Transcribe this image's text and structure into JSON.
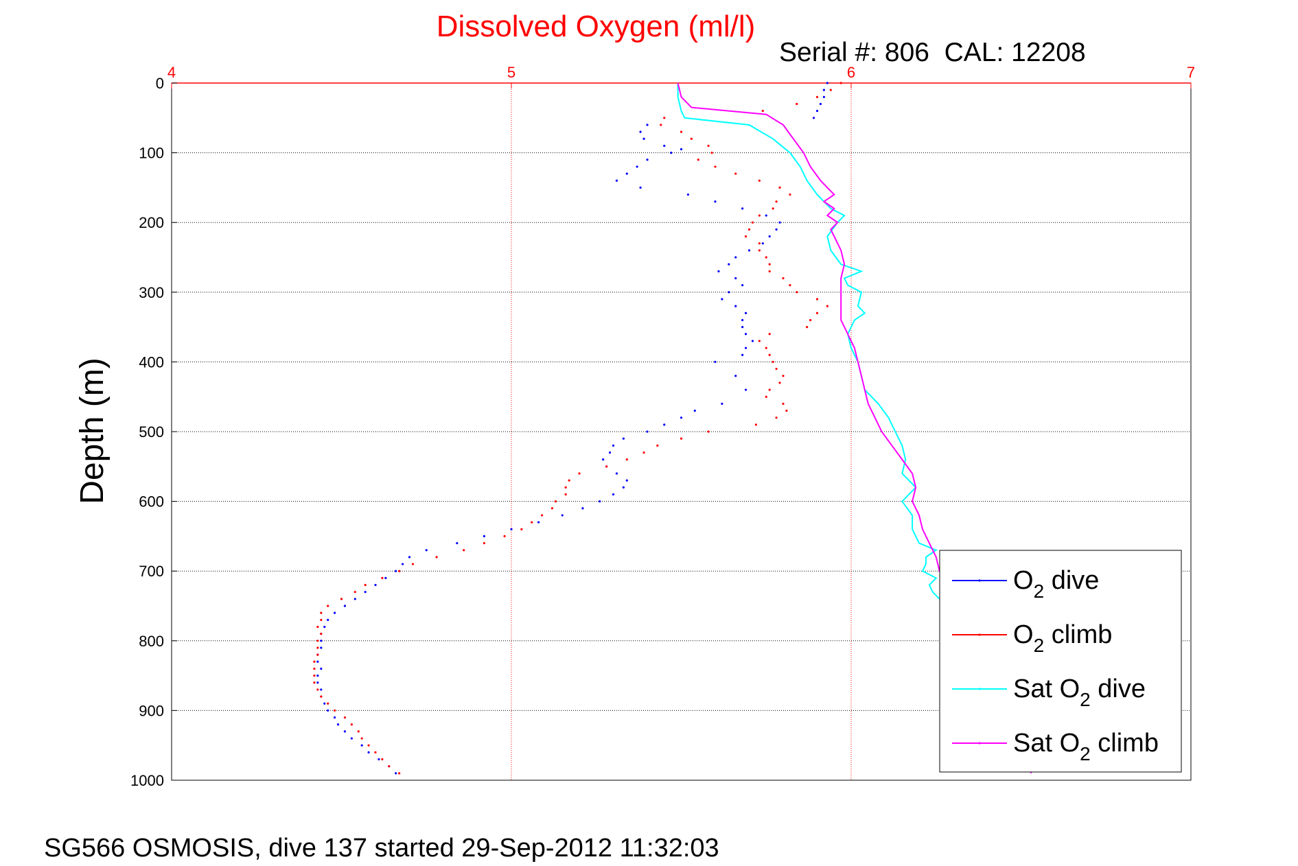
{
  "chart_data": {
    "type": "scatter",
    "title": "Dissolved Oxygen (ml/l)",
    "subtitle": "Serial #: 806  CAL: 12208",
    "ylabel": "Depth (m)",
    "footer": "SG566 OSMOSIS, dive 137 started 29-Sep-2012 11:32:03",
    "xlim": [
      4,
      7
    ],
    "ylim": [
      0,
      1000
    ],
    "y_reversed": true,
    "x_axis_position": "top",
    "x_ticks": [
      "4",
      "5",
      "6",
      "7"
    ],
    "y_ticks": [
      "0",
      "100",
      "200",
      "300",
      "400",
      "500",
      "600",
      "700",
      "800",
      "900",
      "1000"
    ],
    "grid": true,
    "legend_position": "bottom-right",
    "colors": {
      "title": "#ff0000",
      "x_axis": "#ff0000",
      "y_axis": "#000000",
      "grid_x": "#ff0000",
      "grid_y": "#000000"
    },
    "series": [
      {
        "name": "O2 dive",
        "legend_label": "O",
        "legend_sub": "2",
        "legend_rest": " dive",
        "style": "dots",
        "color": "#0000ff",
        "points": [
          [
            5.93,
            0
          ],
          [
            5.92,
            10
          ],
          [
            5.92,
            20
          ],
          [
            5.91,
            30
          ],
          [
            5.9,
            40
          ],
          [
            5.89,
            50
          ],
          [
            5.4,
            60
          ],
          [
            5.38,
            70
          ],
          [
            5.39,
            80
          ],
          [
            5.45,
            90
          ],
          [
            5.5,
            95
          ],
          [
            5.47,
            100
          ],
          [
            5.4,
            110
          ],
          [
            5.37,
            120
          ],
          [
            5.34,
            130
          ],
          [
            5.31,
            140
          ],
          [
            5.38,
            150
          ],
          [
            5.52,
            160
          ],
          [
            5.6,
            170
          ],
          [
            5.68,
            180
          ],
          [
            5.75,
            190
          ],
          [
            5.79,
            200
          ],
          [
            5.78,
            210
          ],
          [
            5.76,
            220
          ],
          [
            5.74,
            230
          ],
          [
            5.7,
            240
          ],
          [
            5.66,
            250
          ],
          [
            5.64,
            260
          ],
          [
            5.61,
            270
          ],
          [
            5.66,
            280
          ],
          [
            5.68,
            290
          ],
          [
            5.64,
            300
          ],
          [
            5.62,
            310
          ],
          [
            5.66,
            320
          ],
          [
            5.69,
            330
          ],
          [
            5.68,
            340
          ],
          [
            5.68,
            350
          ],
          [
            5.69,
            360
          ],
          [
            5.71,
            370
          ],
          [
            5.69,
            380
          ],
          [
            5.68,
            390
          ],
          [
            5.6,
            400
          ],
          [
            5.66,
            420
          ],
          [
            5.69,
            440
          ],
          [
            5.62,
            460
          ],
          [
            5.54,
            470
          ],
          [
            5.5,
            480
          ],
          [
            5.45,
            490
          ],
          [
            5.4,
            500
          ],
          [
            5.33,
            510
          ],
          [
            5.3,
            520
          ],
          [
            5.29,
            530
          ],
          [
            5.27,
            540
          ],
          [
            5.28,
            550
          ],
          [
            5.31,
            560
          ],
          [
            5.34,
            570
          ],
          [
            5.33,
            580
          ],
          [
            5.3,
            590
          ],
          [
            5.26,
            600
          ],
          [
            5.21,
            610
          ],
          [
            5.15,
            620
          ],
          [
            5.08,
            630
          ],
          [
            5.0,
            640
          ],
          [
            4.92,
            650
          ],
          [
            4.84,
            660
          ],
          [
            4.75,
            670
          ],
          [
            4.7,
            680
          ],
          [
            4.68,
            690
          ],
          [
            4.66,
            700
          ],
          [
            4.63,
            710
          ],
          [
            4.6,
            720
          ],
          [
            4.57,
            730
          ],
          [
            4.54,
            740
          ],
          [
            4.51,
            750
          ],
          [
            4.48,
            760
          ],
          [
            4.46,
            770
          ],
          [
            4.45,
            780
          ],
          [
            4.44,
            790
          ],
          [
            4.44,
            800
          ],
          [
            4.44,
            810
          ],
          [
            4.43,
            820
          ],
          [
            4.43,
            830
          ],
          [
            4.44,
            840
          ],
          [
            4.43,
            850
          ],
          [
            4.43,
            860
          ],
          [
            4.44,
            870
          ],
          [
            4.44,
            880
          ],
          [
            4.45,
            890
          ],
          [
            4.46,
            900
          ],
          [
            4.48,
            910
          ],
          [
            4.49,
            920
          ],
          [
            4.51,
            930
          ],
          [
            4.53,
            940
          ],
          [
            4.56,
            950
          ],
          [
            4.58,
            960
          ],
          [
            4.61,
            970
          ],
          [
            4.64,
            980
          ],
          [
            4.66,
            990
          ]
        ]
      },
      {
        "name": "O2 climb",
        "legend_label": "O",
        "legend_sub": "2",
        "legend_rest": " climb",
        "style": "dots",
        "color": "#ff0000",
        "points": [
          [
            5.97,
            0
          ],
          [
            5.94,
            10
          ],
          [
            5.9,
            20
          ],
          [
            5.84,
            30
          ],
          [
            5.74,
            40
          ],
          [
            5.45,
            50
          ],
          [
            5.44,
            60
          ],
          [
            5.5,
            70
          ],
          [
            5.53,
            80
          ],
          [
            5.58,
            90
          ],
          [
            5.59,
            100
          ],
          [
            5.55,
            110
          ],
          [
            5.6,
            120
          ],
          [
            5.66,
            130
          ],
          [
            5.73,
            140
          ],
          [
            5.79,
            150
          ],
          [
            5.82,
            160
          ],
          [
            5.78,
            170
          ],
          [
            5.77,
            180
          ],
          [
            5.73,
            190
          ],
          [
            5.71,
            200
          ],
          [
            5.7,
            210
          ],
          [
            5.69,
            220
          ],
          [
            5.73,
            230
          ],
          [
            5.73,
            240
          ],
          [
            5.75,
            250
          ],
          [
            5.76,
            260
          ],
          [
            5.76,
            270
          ],
          [
            5.8,
            280
          ],
          [
            5.82,
            290
          ],
          [
            5.84,
            300
          ],
          [
            5.9,
            310
          ],
          [
            5.93,
            320
          ],
          [
            5.9,
            330
          ],
          [
            5.88,
            340
          ],
          [
            5.87,
            350
          ],
          [
            5.76,
            360
          ],
          [
            5.73,
            370
          ],
          [
            5.75,
            380
          ],
          [
            5.76,
            390
          ],
          [
            5.77,
            400
          ],
          [
            5.78,
            410
          ],
          [
            5.8,
            420
          ],
          [
            5.79,
            430
          ],
          [
            5.76,
            440
          ],
          [
            5.75,
            450
          ],
          [
            5.8,
            460
          ],
          [
            5.81,
            470
          ],
          [
            5.78,
            480
          ],
          [
            5.72,
            490
          ],
          [
            5.58,
            500
          ],
          [
            5.5,
            510
          ],
          [
            5.43,
            520
          ],
          [
            5.39,
            530
          ],
          [
            5.34,
            540
          ],
          [
            5.28,
            550
          ],
          [
            5.2,
            560
          ],
          [
            5.17,
            570
          ],
          [
            5.16,
            580
          ],
          [
            5.16,
            590
          ],
          [
            5.13,
            600
          ],
          [
            5.12,
            610
          ],
          [
            5.09,
            620
          ],
          [
            5.06,
            630
          ],
          [
            5.03,
            640
          ],
          [
            4.98,
            650
          ],
          [
            4.92,
            660
          ],
          [
            4.86,
            670
          ],
          [
            4.78,
            680
          ],
          [
            4.71,
            690
          ],
          [
            4.67,
            700
          ],
          [
            4.62,
            710
          ],
          [
            4.57,
            720
          ],
          [
            4.54,
            730
          ],
          [
            4.5,
            740
          ],
          [
            4.46,
            750
          ],
          [
            4.44,
            760
          ],
          [
            4.44,
            770
          ],
          [
            4.43,
            780
          ],
          [
            4.44,
            790
          ],
          [
            4.43,
            800
          ],
          [
            4.43,
            810
          ],
          [
            4.43,
            820
          ],
          [
            4.42,
            830
          ],
          [
            4.42,
            840
          ],
          [
            4.42,
            850
          ],
          [
            4.42,
            860
          ],
          [
            4.43,
            870
          ],
          [
            4.44,
            880
          ],
          [
            4.46,
            890
          ],
          [
            4.48,
            900
          ],
          [
            4.51,
            910
          ],
          [
            4.53,
            920
          ],
          [
            4.55,
            930
          ],
          [
            4.56,
            940
          ],
          [
            4.58,
            950
          ],
          [
            4.6,
            960
          ],
          [
            4.62,
            970
          ],
          [
            4.64,
            980
          ],
          [
            4.67,
            990
          ]
        ]
      },
      {
        "name": "Sat O2 dive",
        "legend_label": "Sat O",
        "legend_sub": "2",
        "legend_rest": " dive",
        "style": "line",
        "color": "#00ffff",
        "points": [
          [
            5.49,
            0
          ],
          [
            5.49,
            20
          ],
          [
            5.5,
            40
          ],
          [
            5.51,
            50
          ],
          [
            5.7,
            60
          ],
          [
            5.77,
            80
          ],
          [
            5.82,
            100
          ],
          [
            5.85,
            120
          ],
          [
            5.87,
            140
          ],
          [
            5.9,
            160
          ],
          [
            5.94,
            180
          ],
          [
            5.98,
            190
          ],
          [
            5.96,
            200
          ],
          [
            5.93,
            220
          ],
          [
            5.94,
            240
          ],
          [
            5.97,
            260
          ],
          [
            6.03,
            270
          ],
          [
            5.98,
            280
          ],
          [
            5.99,
            290
          ],
          [
            6.03,
            300
          ],
          [
            6.02,
            320
          ],
          [
            6.04,
            330
          ],
          [
            6.01,
            340
          ],
          [
            5.99,
            360
          ],
          [
            6.0,
            380
          ],
          [
            6.02,
            400
          ],
          [
            6.03,
            420
          ],
          [
            6.04,
            440
          ],
          [
            6.08,
            460
          ],
          [
            6.11,
            480
          ],
          [
            6.13,
            500
          ],
          [
            6.15,
            520
          ],
          [
            6.16,
            540
          ],
          [
            6.15,
            560
          ],
          [
            6.19,
            580
          ],
          [
            6.15,
            600
          ],
          [
            6.18,
            620
          ],
          [
            6.18,
            640
          ],
          [
            6.2,
            660
          ],
          [
            6.25,
            670
          ],
          [
            6.22,
            680
          ],
          [
            6.22,
            690
          ],
          [
            6.21,
            700
          ],
          [
            6.25,
            710
          ],
          [
            6.23,
            720
          ],
          [
            6.24,
            730
          ],
          [
            6.26,
            740
          ]
        ]
      },
      {
        "name": "Sat O2 climb",
        "legend_label": "Sat O",
        "legend_sub": "2",
        "legend_rest": " climb",
        "style": "line",
        "color": "#ff00ff",
        "points": [
          [
            5.49,
            0
          ],
          [
            5.5,
            20
          ],
          [
            5.53,
            35
          ],
          [
            5.75,
            45
          ],
          [
            5.8,
            60
          ],
          [
            5.83,
            80
          ],
          [
            5.86,
            100
          ],
          [
            5.88,
            120
          ],
          [
            5.91,
            140
          ],
          [
            5.93,
            150
          ],
          [
            5.95,
            160
          ],
          [
            5.92,
            170
          ],
          [
            5.95,
            180
          ],
          [
            5.93,
            190
          ],
          [
            5.96,
            200
          ],
          [
            5.94,
            210
          ],
          [
            5.95,
            220
          ],
          [
            5.97,
            240
          ],
          [
            5.98,
            260
          ],
          [
            5.97,
            280
          ],
          [
            5.97,
            300
          ],
          [
            5.97,
            320
          ],
          [
            5.97,
            340
          ],
          [
            5.99,
            360
          ],
          [
            6.01,
            380
          ],
          [
            6.02,
            400
          ],
          [
            6.03,
            420
          ],
          [
            6.04,
            440
          ],
          [
            6.05,
            460
          ],
          [
            6.07,
            480
          ],
          [
            6.09,
            500
          ],
          [
            6.12,
            520
          ],
          [
            6.15,
            540
          ],
          [
            6.18,
            560
          ],
          [
            6.19,
            580
          ],
          [
            6.18,
            600
          ],
          [
            6.2,
            620
          ],
          [
            6.21,
            640
          ],
          [
            6.23,
            660
          ],
          [
            6.25,
            680
          ],
          [
            6.26,
            700
          ],
          [
            6.28,
            720
          ],
          [
            6.27,
            740
          ],
          [
            6.28,
            760
          ],
          [
            6.32,
            800
          ],
          [
            6.38,
            850
          ],
          [
            6.45,
            900
          ],
          [
            6.5,
            950
          ],
          [
            6.53,
            990
          ]
        ]
      }
    ]
  }
}
